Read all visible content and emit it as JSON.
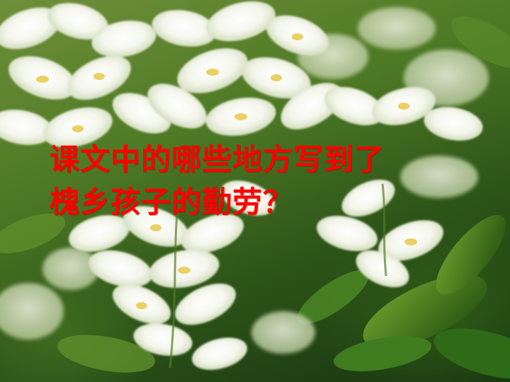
{
  "slide": {
    "title_lines": [
      "课文中的哪些地方写到了",
      "槐乡孩子的勤劳？"
    ]
  }
}
